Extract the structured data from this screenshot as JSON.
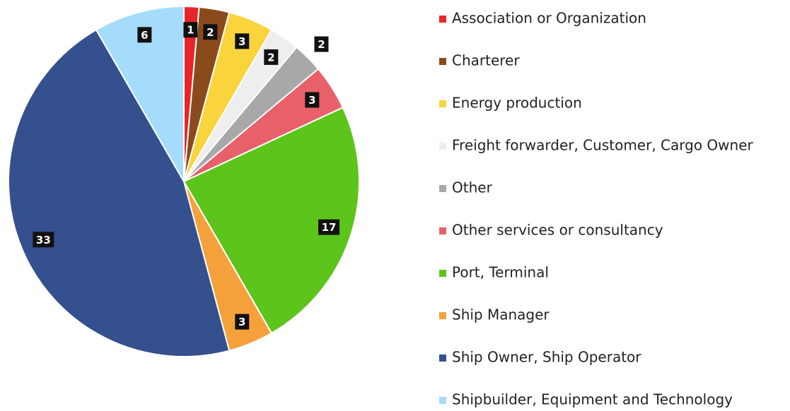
{
  "chart_data": {
    "type": "pie",
    "categories": [
      "Association or Organization",
      "Charterer",
      "Energy production",
      "Freight forwarder, Customer, Cargo Owner",
      "Other",
      "Other services or consultancy",
      "Port, Terminal",
      "Ship Manager",
      "Ship Owner, Ship Operator",
      "Shipbuilder, Equipment and Technology"
    ],
    "values": [
      1,
      2,
      3,
      2,
      2,
      3,
      17,
      3,
      33,
      6
    ],
    "colors": [
      "#e8262a",
      "#8b4a1c",
      "#fad43c",
      "#eeeeee",
      "#a8a8a8",
      "#e8606a",
      "#5cc41a",
      "#f4a13c",
      "#34508f",
      "#a5dcfb"
    ],
    "legend": "right"
  }
}
